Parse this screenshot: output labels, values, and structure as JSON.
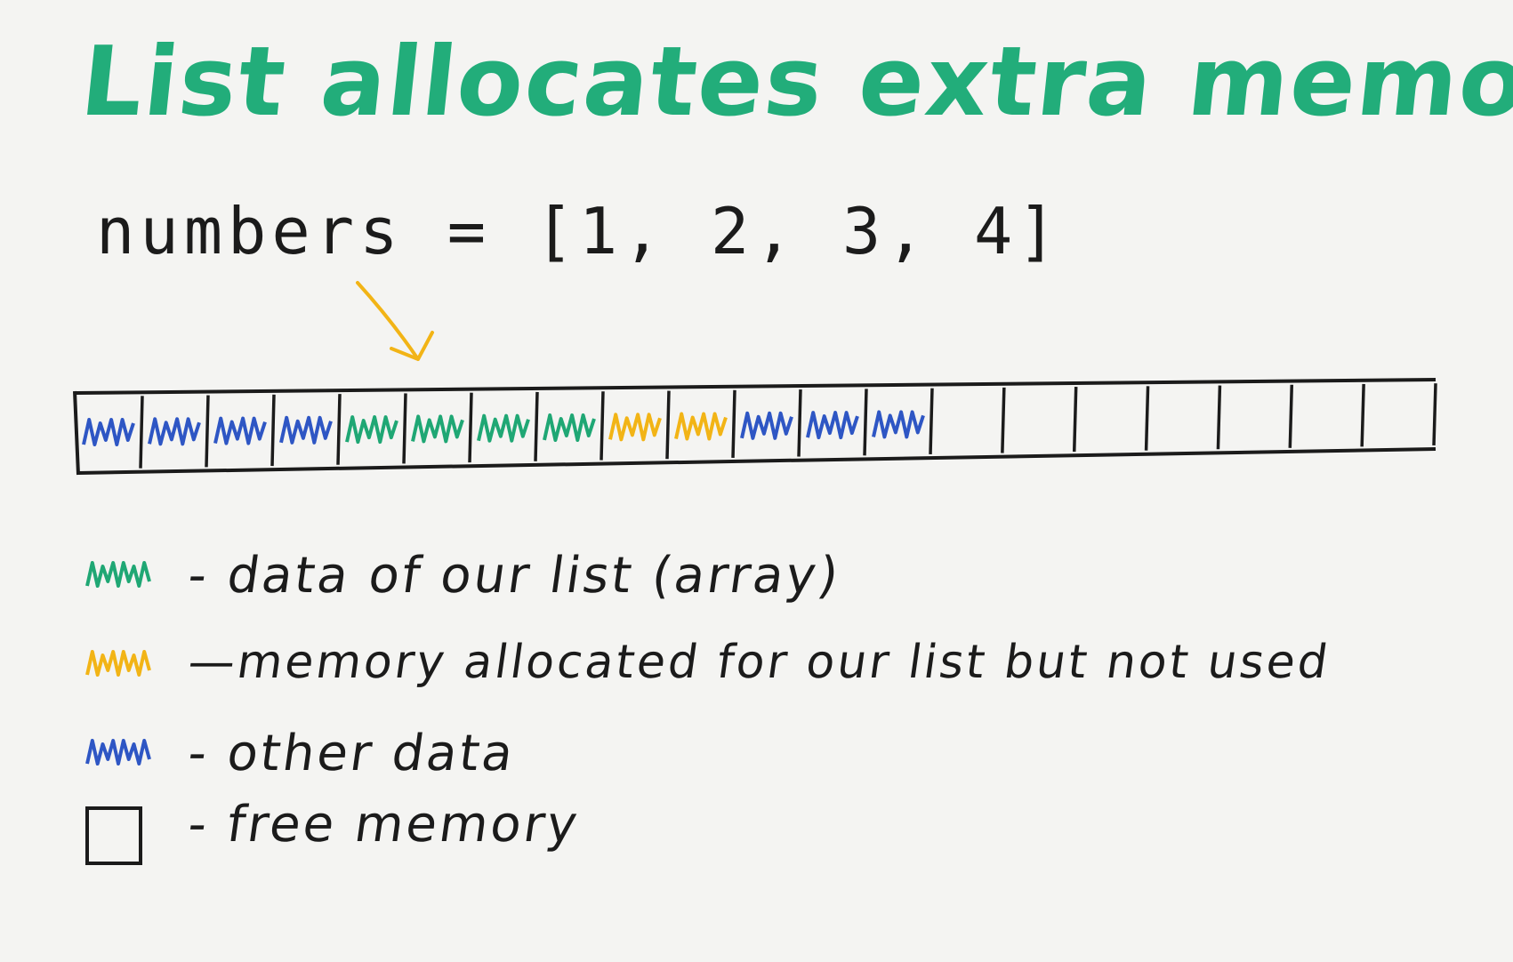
{
  "title": "List allocates extra memory",
  "code_line": "numbers = [1, 2, 3, 4]",
  "colors": {
    "list_data": "#1fa774",
    "allocated_unused": "#f2b416",
    "other_data": "#2e56c4",
    "ink": "#1b1b1b",
    "title": "#22ad7a",
    "arrow": "#f2b416"
  },
  "memory_cells": [
    "other",
    "other",
    "other",
    "other",
    "list",
    "list",
    "list",
    "list",
    "unused",
    "unused",
    "other",
    "other",
    "other",
    "free",
    "free",
    "free",
    "free",
    "free",
    "free",
    "free"
  ],
  "legend": [
    {
      "kind": "list",
      "label": "- data of our list (array)"
    },
    {
      "kind": "unused",
      "label": "—memory allocated for our list but not used"
    },
    {
      "kind": "other",
      "label": "- other data"
    },
    {
      "kind": "free",
      "label": "- free memory"
    }
  ]
}
